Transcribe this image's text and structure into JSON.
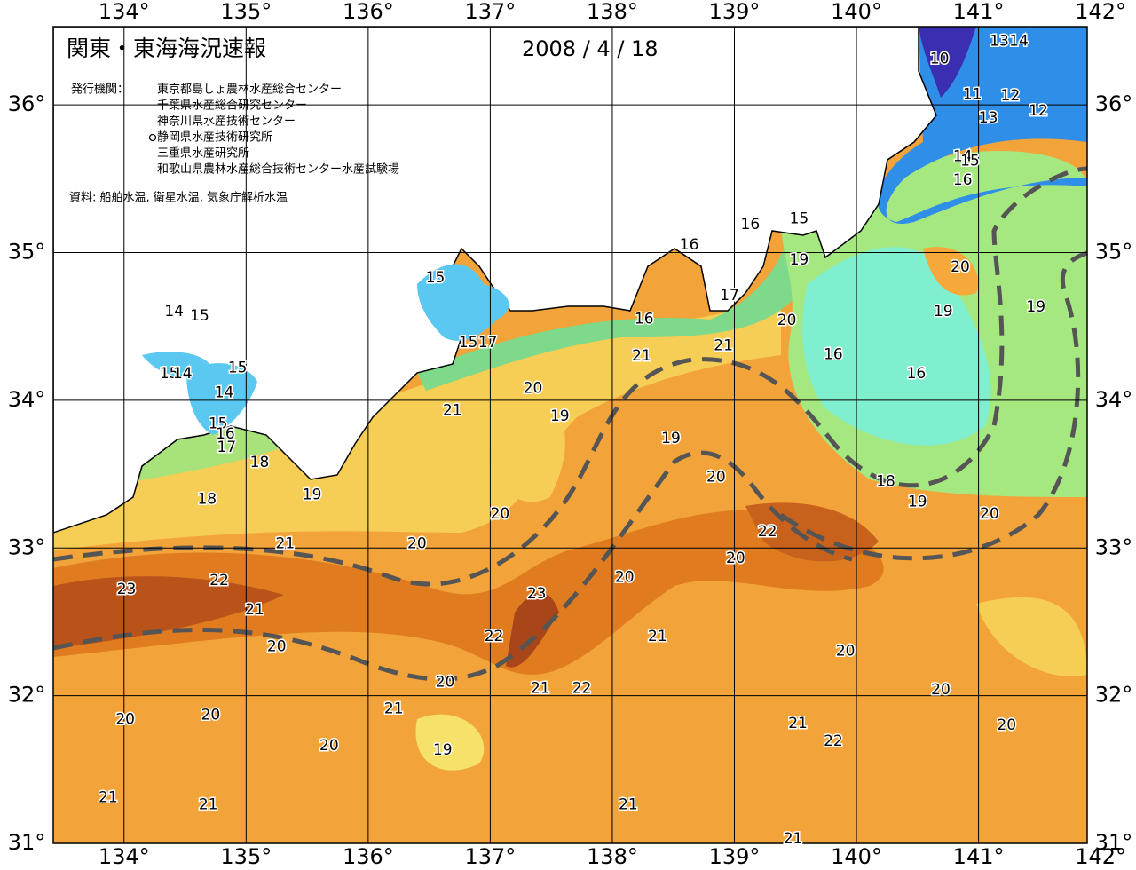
{
  "header": {
    "title": "関東・東海海況速報",
    "date": "2008 / 4 / 18",
    "publisher_label": "発行機関：",
    "publishers": [
      "東京都島しょ農林水産総合センター",
      "千葉県水産総合研究センター",
      "神奈川県水産技術センター",
      "静岡県水産技術研究所",
      "三重県水産研究所",
      "和歌山県農林水産総合技術センター水産試験場"
    ],
    "source": "資料: 船舶水温, 衛星水温, 気象庁解析水温"
  },
  "map": {
    "xlim": [
      133.42,
      141.89
    ],
    "ylim": [
      31,
      36.53
    ],
    "xticks": [
      {
        "value": 134,
        "label": "134°"
      },
      {
        "value": 135,
        "label": "135°"
      },
      {
        "value": 136,
        "label": "136°"
      },
      {
        "value": 137,
        "label": "137°"
      },
      {
        "value": 138,
        "label": "138°"
      },
      {
        "value": 139,
        "label": "139°"
      },
      {
        "value": 140,
        "label": "140°"
      },
      {
        "value": 141,
        "label": "141°"
      },
      {
        "value": 142,
        "label": "142°"
      }
    ],
    "yticks": [
      {
        "value": 31,
        "label": "31°"
      },
      {
        "value": 32,
        "label": "32°"
      },
      {
        "value": 33,
        "label": "33°"
      },
      {
        "value": 34,
        "label": "34°"
      },
      {
        "value": 35,
        "label": "35°"
      },
      {
        "value": 36,
        "label": "36°"
      }
    ],
    "contour_labels": [
      {
        "temp": 10,
        "lon": 140.68,
        "lat": 36.31
      },
      {
        "temp": 13,
        "lon": 141.17,
        "lat": 36.43
      },
      {
        "temp": 14,
        "lon": 141.33,
        "lat": 36.43
      },
      {
        "temp": 11,
        "lon": 140.95,
        "lat": 36.07
      },
      {
        "temp": 12,
        "lon": 141.26,
        "lat": 36.06
      },
      {
        "temp": 13,
        "lon": 141.08,
        "lat": 35.91
      },
      {
        "temp": 12,
        "lon": 141.49,
        "lat": 35.96
      },
      {
        "temp": 14,
        "lon": 140.87,
        "lat": 35.65
      },
      {
        "temp": 15,
        "lon": 140.93,
        "lat": 35.62
      },
      {
        "temp": 16,
        "lon": 140.87,
        "lat": 35.49
      },
      {
        "temp": 15,
        "lon": 139.53,
        "lat": 35.23
      },
      {
        "temp": 16,
        "lon": 139.13,
        "lat": 35.19
      },
      {
        "temp": 16,
        "lon": 138.63,
        "lat": 35.05
      },
      {
        "temp": 19,
        "lon": 139.53,
        "lat": 34.95
      },
      {
        "temp": 20,
        "lon": 140.85,
        "lat": 34.9
      },
      {
        "temp": 19,
        "lon": 140.71,
        "lat": 34.6
      },
      {
        "temp": 19,
        "lon": 141.47,
        "lat": 34.63
      },
      {
        "temp": 15,
        "lon": 136.55,
        "lat": 34.83
      },
      {
        "temp": 14,
        "lon": 134.41,
        "lat": 34.6
      },
      {
        "temp": 15,
        "lon": 134.62,
        "lat": 34.57
      },
      {
        "temp": 17,
        "lon": 138.96,
        "lat": 34.71
      },
      {
        "temp": 20,
        "lon": 139.43,
        "lat": 34.54
      },
      {
        "temp": 16,
        "lon": 138.26,
        "lat": 34.55
      },
      {
        "temp": 21,
        "lon": 138.91,
        "lat": 34.37
      },
      {
        "temp": 16,
        "lon": 139.81,
        "lat": 34.31
      },
      {
        "temp": 16,
        "lon": 140.49,
        "lat": 34.18
      },
      {
        "temp": 15,
        "lon": 136.82,
        "lat": 34.39
      },
      {
        "temp": 17,
        "lon": 136.98,
        "lat": 34.39
      },
      {
        "temp": 21,
        "lon": 138.24,
        "lat": 34.3
      },
      {
        "temp": 15,
        "lon": 134.37,
        "lat": 34.18
      },
      {
        "temp": 14,
        "lon": 134.48,
        "lat": 34.18
      },
      {
        "temp": 15,
        "lon": 134.93,
        "lat": 34.22
      },
      {
        "temp": 14,
        "lon": 134.82,
        "lat": 34.05
      },
      {
        "temp": 20,
        "lon": 137.35,
        "lat": 34.08
      },
      {
        "temp": 21,
        "lon": 136.69,
        "lat": 33.93
      },
      {
        "temp": 19,
        "lon": 137.57,
        "lat": 33.89
      },
      {
        "temp": 15,
        "lon": 134.77,
        "lat": 33.84
      },
      {
        "temp": 16,
        "lon": 134.83,
        "lat": 33.77
      },
      {
        "temp": 17,
        "lon": 134.84,
        "lat": 33.68
      },
      {
        "temp": 19,
        "lon": 138.48,
        "lat": 33.74
      },
      {
        "temp": 18,
        "lon": 135.11,
        "lat": 33.58
      },
      {
        "temp": 20,
        "lon": 138.85,
        "lat": 33.48
      },
      {
        "temp": 18,
        "lon": 140.24,
        "lat": 33.45
      },
      {
        "temp": 19,
        "lon": 140.5,
        "lat": 33.31
      },
      {
        "temp": 18,
        "lon": 134.68,
        "lat": 33.33
      },
      {
        "temp": 19,
        "lon": 135.54,
        "lat": 33.36
      },
      {
        "temp": 20,
        "lon": 137.08,
        "lat": 33.23
      },
      {
        "temp": 20,
        "lon": 141.09,
        "lat": 33.23
      },
      {
        "temp": 22,
        "lon": 139.27,
        "lat": 33.11
      },
      {
        "temp": 21,
        "lon": 135.32,
        "lat": 33.03
      },
      {
        "temp": 20,
        "lon": 136.4,
        "lat": 33.03
      },
      {
        "temp": 20,
        "lon": 139.01,
        "lat": 32.93
      },
      {
        "temp": 20,
        "lon": 138.1,
        "lat": 32.8
      },
      {
        "temp": 23,
        "lon": 134.02,
        "lat": 32.72
      },
      {
        "temp": 22,
        "lon": 134.78,
        "lat": 32.78
      },
      {
        "temp": 23,
        "lon": 137.38,
        "lat": 32.69
      },
      {
        "temp": 21,
        "lon": 135.07,
        "lat": 32.58
      },
      {
        "temp": 22,
        "lon": 137.03,
        "lat": 32.4
      },
      {
        "temp": 21,
        "lon": 138.37,
        "lat": 32.4
      },
      {
        "temp": 20,
        "lon": 135.25,
        "lat": 32.33
      },
      {
        "temp": 20,
        "lon": 139.91,
        "lat": 32.3
      },
      {
        "temp": 20,
        "lon": 136.63,
        "lat": 32.09
      },
      {
        "temp": 21,
        "lon": 137.41,
        "lat": 32.05
      },
      {
        "temp": 22,
        "lon": 137.75,
        "lat": 32.05
      },
      {
        "temp": 20,
        "lon": 140.69,
        "lat": 32.04
      },
      {
        "temp": 21,
        "lon": 136.21,
        "lat": 31.91
      },
      {
        "temp": 20,
        "lon": 134.01,
        "lat": 31.84
      },
      {
        "temp": 20,
        "lon": 134.71,
        "lat": 31.87
      },
      {
        "temp": 21,
        "lon": 139.52,
        "lat": 31.81
      },
      {
        "temp": 20,
        "lon": 141.23,
        "lat": 31.8
      },
      {
        "temp": 22,
        "lon": 139.81,
        "lat": 31.69
      },
      {
        "temp": 20,
        "lon": 135.68,
        "lat": 31.66
      },
      {
        "temp": 19,
        "lon": 136.61,
        "lat": 31.63
      },
      {
        "temp": 21,
        "lon": 133.87,
        "lat": 31.31
      },
      {
        "temp": 21,
        "lon": 134.69,
        "lat": 31.26
      },
      {
        "temp": 21,
        "lon": 138.13,
        "lat": 31.26
      },
      {
        "temp": 21,
        "lon": 139.48,
        "lat": 31.03
      }
    ]
  }
}
